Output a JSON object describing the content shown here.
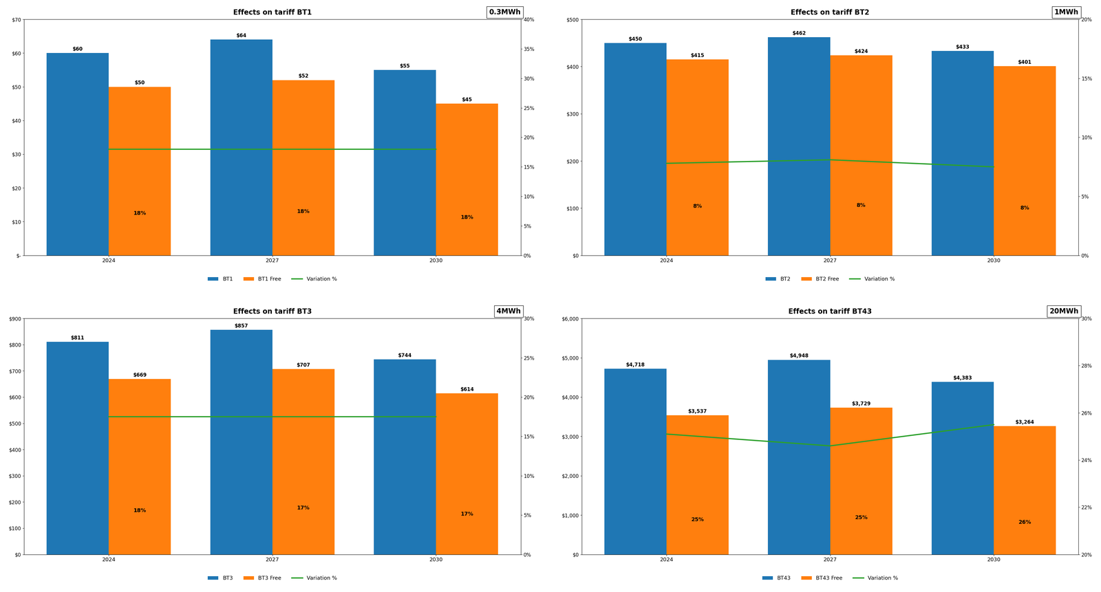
{
  "chart_data": [
    {
      "type": "bar",
      "title": "Effects on tariff BT1",
      "annotations": [
        "0.3MWh"
      ],
      "categories": [
        "2024",
        "2027",
        "2030"
      ],
      "series": [
        {
          "name": "BT1",
          "color": "#1f77b4",
          "values": [
            60,
            64,
            55
          ],
          "value_labels": [
            "$60",
            "$64",
            "$55"
          ]
        },
        {
          "name": "BT1 Free",
          "color": "#ff7f0e",
          "values": [
            50,
            52,
            45
          ],
          "value_labels": [
            "$50",
            "$52",
            "$45"
          ]
        },
        {
          "name": "Variation %",
          "type": "line",
          "axis": "y2",
          "color": "#2ca02c",
          "values": [
            18,
            18,
            18
          ],
          "value_labels": [
            "18%",
            "18%",
            "18%"
          ]
        }
      ],
      "ylim": [
        0,
        70
      ],
      "yticks": [
        {
          "value": 0,
          "label": "$-"
        },
        {
          "value": 10,
          "label": "$10"
        },
        {
          "value": 20,
          "label": "$20"
        },
        {
          "value": 30,
          "label": "$30"
        },
        {
          "value": 40,
          "label": "$40"
        },
        {
          "value": 50,
          "label": "$50"
        },
        {
          "value": 60,
          "label": "$60"
        },
        {
          "value": 70,
          "label": "$70"
        }
      ],
      "y2lim": [
        0,
        40
      ],
      "y2ticks": [
        {
          "value": 0,
          "label": "0%"
        },
        {
          "value": 5,
          "label": "5%"
        },
        {
          "value": 10,
          "label": "10%"
        },
        {
          "value": 15,
          "label": "15%"
        },
        {
          "value": 20,
          "label": "20%"
        },
        {
          "value": 25,
          "label": "25%"
        },
        {
          "value": 30,
          "label": "30%"
        },
        {
          "value": 35,
          "label": "35%"
        },
        {
          "value": 40,
          "label": "40%"
        }
      ],
      "legend": "upper center",
      "data_labels": true,
      "grid": false
    },
    {
      "type": "bar",
      "title": "Effects on tariff BT2",
      "annotations": [
        "1MWh"
      ],
      "categories": [
        "2024",
        "2027",
        "2030"
      ],
      "series": [
        {
          "name": "BT2",
          "color": "#1f77b4",
          "values": [
            450,
            462,
            433
          ],
          "value_labels": [
            "$450",
            "$462",
            "$433"
          ]
        },
        {
          "name": "BT2 Free",
          "color": "#ff7f0e",
          "values": [
            415,
            424,
            401
          ],
          "value_labels": [
            "$415",
            "$424",
            "$401"
          ]
        },
        {
          "name": "Variation %",
          "type": "line",
          "axis": "y2",
          "color": "#2ca02c",
          "values": [
            7.8,
            8.1,
            7.5
          ],
          "value_labels": [
            "8%",
            "8%",
            "8%"
          ]
        }
      ],
      "ylim": [
        0,
        500
      ],
      "yticks": [
        {
          "value": 0,
          "label": "$0"
        },
        {
          "value": 100,
          "label": "$100"
        },
        {
          "value": 200,
          "label": "$200"
        },
        {
          "value": 300,
          "label": "$300"
        },
        {
          "value": 400,
          "label": "$400"
        },
        {
          "value": 500,
          "label": "$500"
        }
      ],
      "y2lim": [
        0,
        20
      ],
      "y2ticks": [
        {
          "value": 0,
          "label": "0%"
        },
        {
          "value": 5,
          "label": "5%"
        },
        {
          "value": 10,
          "label": "10%"
        },
        {
          "value": 15,
          "label": "15%"
        },
        {
          "value": 20,
          "label": "20%"
        }
      ],
      "legend": "upper center",
      "data_labels": true,
      "grid": false
    },
    {
      "type": "bar",
      "title": "Effects on tariff BT3",
      "annotations": [
        "4MWh"
      ],
      "categories": [
        "2024",
        "2027",
        "2030"
      ],
      "series": [
        {
          "name": "BT3",
          "color": "#1f77b4",
          "values": [
            811,
            857,
            744
          ],
          "value_labels": [
            "$811",
            "$857",
            "$744"
          ]
        },
        {
          "name": "BT3 Free",
          "color": "#ff7f0e",
          "values": [
            669,
            707,
            614
          ],
          "value_labels": [
            "$669",
            "$707",
            "$614"
          ]
        },
        {
          "name": "Variation %",
          "type": "line",
          "axis": "y2",
          "color": "#2ca02c",
          "values": [
            17.5,
            17.5,
            17.5
          ],
          "value_labels": [
            "18%",
            "17%",
            "17%"
          ]
        }
      ],
      "ylim": [
        0,
        900
      ],
      "yticks": [
        {
          "value": 0,
          "label": "$0"
        },
        {
          "value": 100,
          "label": "$100"
        },
        {
          "value": 200,
          "label": "$200"
        },
        {
          "value": 300,
          "label": "$300"
        },
        {
          "value": 400,
          "label": "$400"
        },
        {
          "value": 500,
          "label": "$500"
        },
        {
          "value": 600,
          "label": "$600"
        },
        {
          "value": 700,
          "label": "$700"
        },
        {
          "value": 800,
          "label": "$800"
        },
        {
          "value": 900,
          "label": "$900"
        }
      ],
      "y2lim": [
        0,
        30
      ],
      "y2ticks": [
        {
          "value": 0,
          "label": "0%"
        },
        {
          "value": 5,
          "label": "5%"
        },
        {
          "value": 10,
          "label": "10%"
        },
        {
          "value": 15,
          "label": "15%"
        },
        {
          "value": 20,
          "label": "20%"
        },
        {
          "value": 25,
          "label": "25%"
        },
        {
          "value": 30,
          "label": "30%"
        }
      ],
      "legend": "upper center",
      "data_labels": true,
      "grid": false
    },
    {
      "type": "bar",
      "title": "Effects on tariff BT43",
      "annotations": [
        "20MWh"
      ],
      "categories": [
        "2024",
        "2027",
        "2030"
      ],
      "series": [
        {
          "name": "BT43",
          "color": "#1f77b4",
          "values": [
            4718,
            4948,
            4383
          ],
          "value_labels": [
            "$4,718",
            "$4,948",
            "$4,383"
          ]
        },
        {
          "name": "BT43 Free",
          "color": "#ff7f0e",
          "values": [
            3537,
            3729,
            3264
          ],
          "value_labels": [
            "$3,537",
            "$3,729",
            "$3,264"
          ]
        },
        {
          "name": "Variation %",
          "type": "line",
          "axis": "y2",
          "color": "#2ca02c",
          "values": [
            25.1,
            24.6,
            25.5
          ],
          "value_labels": [
            "25%",
            "25%",
            "26%"
          ]
        }
      ],
      "ylim": [
        0,
        6000
      ],
      "yticks": [
        {
          "value": 0,
          "label": "$0"
        },
        {
          "value": 1000,
          "label": "$1,000"
        },
        {
          "value": 2000,
          "label": "$2,000"
        },
        {
          "value": 3000,
          "label": "$3,000"
        },
        {
          "value": 4000,
          "label": "$4,000"
        },
        {
          "value": 5000,
          "label": "$5,000"
        },
        {
          "value": 6000,
          "label": "$6,000"
        }
      ],
      "y2lim": [
        20,
        30
      ],
      "y2ticks": [
        {
          "value": 20,
          "label": "20%"
        },
        {
          "value": 22,
          "label": "22%"
        },
        {
          "value": 24,
          "label": "24%"
        },
        {
          "value": 26,
          "label": "26%"
        },
        {
          "value": 28,
          "label": "28%"
        },
        {
          "value": 30,
          "label": "30%"
        }
      ],
      "legend": "upper center",
      "data_labels": true,
      "grid": false
    }
  ]
}
